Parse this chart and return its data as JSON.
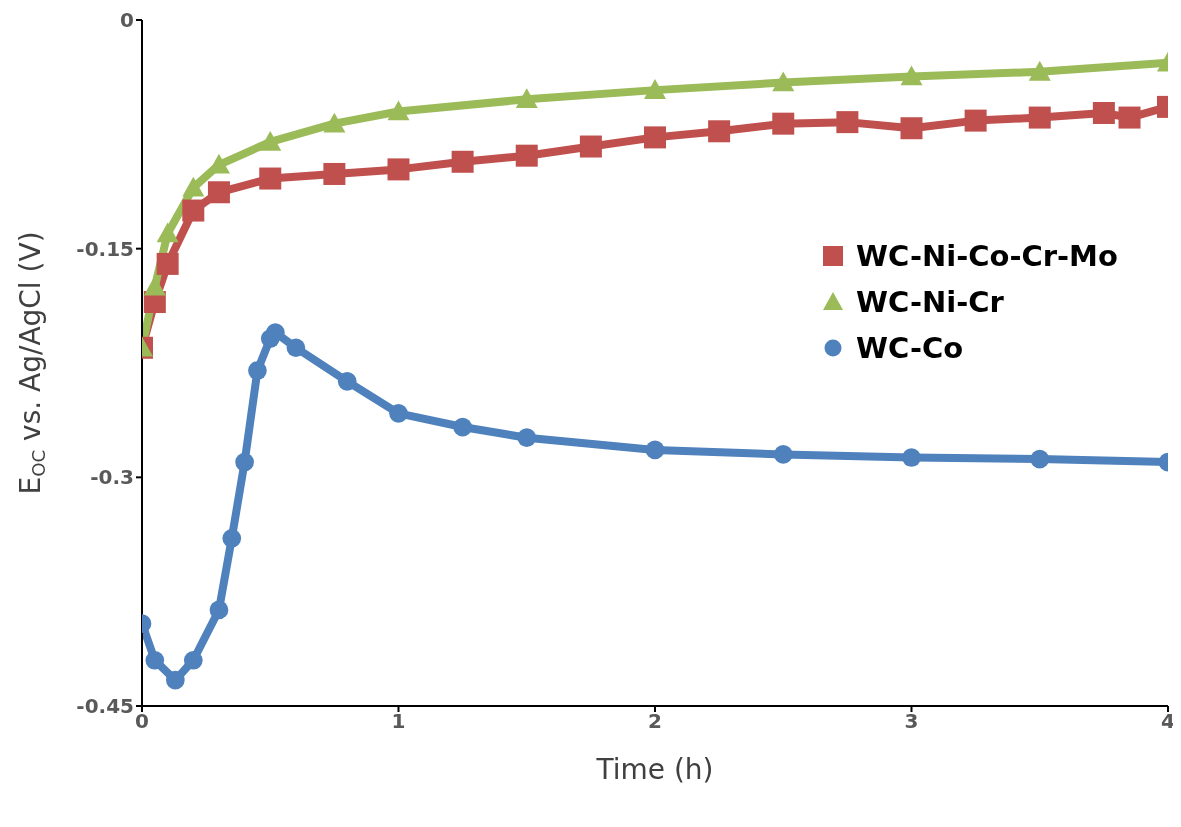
{
  "chart_data": {
    "type": "line",
    "xlabel": "Time (h)",
    "ylabel": "E$_{OC}$ vs. Ag/AgCl (V)",
    "xlim": [
      0,
      4
    ],
    "xticks": [
      0,
      1,
      2,
      3,
      4
    ],
    "ylim": [
      -0.45,
      0
    ],
    "yticks": [
      -0.45,
      -0.3,
      -0.15,
      0
    ],
    "grid": false,
    "legend": "right",
    "line_style": "solid",
    "series": [
      {
        "name": "WC-Ni-Co-Cr-Mo",
        "color": "#c0504d",
        "marker": "square",
        "x": [
          0,
          0.05,
          0.1,
          0.2,
          0.3,
          0.5,
          0.75,
          1,
          1.25,
          1.5,
          1.75,
          2,
          2.25,
          2.5,
          2.75,
          3,
          3.25,
          3.5,
          3.75,
          3.85,
          4
        ],
        "values": [
          -0.215,
          -0.185,
          -0.16,
          -0.125,
          -0.113,
          -0.104,
          -0.101,
          -0.098,
          -0.093,
          -0.089,
          -0.083,
          -0.077,
          -0.073,
          -0.068,
          -0.067,
          -0.071,
          -0.066,
          -0.064,
          -0.061,
          -0.064,
          -0.057
        ]
      },
      {
        "name": "WC-Ni-Cr",
        "color": "#9bbb59",
        "marker": "triangle",
        "x": [
          0,
          0.05,
          0.1,
          0.2,
          0.3,
          0.5,
          0.75,
          1,
          1.5,
          2,
          2.5,
          3,
          3.5,
          4
        ],
        "values": [
          -0.215,
          -0.175,
          -0.14,
          -0.11,
          -0.095,
          -0.08,
          -0.068,
          -0.06,
          -0.052,
          -0.046,
          -0.041,
          -0.037,
          -0.034,
          -0.028
        ]
      },
      {
        "name": "WC-Co",
        "color": "#4f81bd",
        "marker": "circle",
        "x": [
          0,
          0.05,
          0.13,
          0.2,
          0.3,
          0.35,
          0.4,
          0.45,
          0.5,
          0.52,
          0.6,
          0.8,
          1,
          1.25,
          1.5,
          2,
          2.5,
          3,
          3.5,
          4
        ],
        "values": [
          -0.396,
          -0.42,
          -0.433,
          -0.42,
          -0.387,
          -0.34,
          -0.29,
          -0.23,
          -0.209,
          -0.205,
          -0.215,
          -0.237,
          -0.258,
          -0.267,
          -0.274,
          -0.282,
          -0.285,
          -0.287,
          -0.288,
          -0.29
        ]
      }
    ]
  }
}
